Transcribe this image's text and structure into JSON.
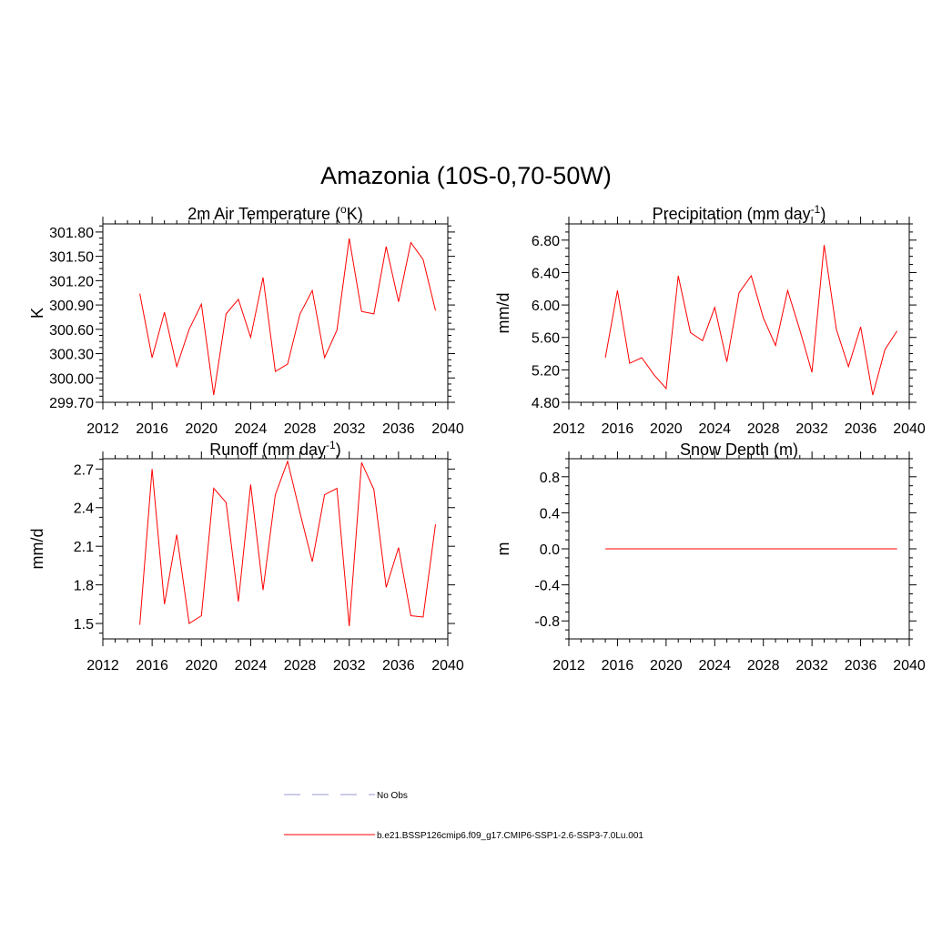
{
  "figure": {
    "title": "Amazonia (10S-0,70-50W)"
  },
  "colors": {
    "series": "#ff0000",
    "obs": "#9a9ad6"
  },
  "legend": {
    "placement": "bottom-center",
    "items": [
      {
        "label": "No Obs",
        "style": "dashed",
        "color": "#9a9ad6"
      },
      {
        "label": "b.e21.BSSP126cmip6.f09_g17.CMIP6-SSP1-2.6-SSP3-7.0Lu.001",
        "style": "solid",
        "color": "#ff0000"
      }
    ]
  },
  "chart_data": [
    {
      "type": "line",
      "title_main": "2m Air Temperature (",
      "title_sup": "o",
      "title_tail": "K)",
      "ylabel": "K",
      "xlabel": "",
      "xlim": [
        2012,
        2040
      ],
      "ylim": [
        299.7,
        301.9
      ],
      "xticks": [
        2012,
        2016,
        2020,
        2024,
        2028,
        2032,
        2036,
        2040
      ],
      "xtick_labels": [
        "2012",
        "2016",
        "2020",
        "2024",
        "2028",
        "2032",
        "2036",
        "2040"
      ],
      "yticks": [
        299.7,
        300.0,
        300.3,
        300.6,
        300.9,
        301.2,
        301.5,
        301.8
      ],
      "ytick_labels": [
        "299.70",
        "300.00",
        "300.30",
        "300.60",
        "300.90",
        "301.20",
        "301.50",
        "301.80"
      ],
      "x": [
        2015,
        2016,
        2017,
        2018,
        2019,
        2020,
        2021,
        2022,
        2023,
        2024,
        2025,
        2026,
        2027,
        2028,
        2029,
        2030,
        2031,
        2032,
        2033,
        2034,
        2035,
        2036,
        2037,
        2038,
        2039
      ],
      "y": [
        301.04,
        300.25,
        300.81,
        300.14,
        300.6,
        300.91,
        299.79,
        300.79,
        300.97,
        300.5,
        301.24,
        300.08,
        300.17,
        300.79,
        301.08,
        300.25,
        300.59,
        301.72,
        300.82,
        300.79,
        301.62,
        300.94,
        301.67,
        301.46,
        300.83
      ]
    },
    {
      "type": "line",
      "title_main": "Precipitation (mm day",
      "title_sup": "-1",
      "title_tail": ")",
      "ylabel": "mm/d",
      "xlabel": "",
      "xlim": [
        2012,
        2040
      ],
      "ylim": [
        4.8,
        7.0
      ],
      "xticks": [
        2012,
        2016,
        2020,
        2024,
        2028,
        2032,
        2036,
        2040
      ],
      "xtick_labels": [
        "2012",
        "2016",
        "2020",
        "2024",
        "2028",
        "2032",
        "2036",
        "2040"
      ],
      "yticks": [
        4.8,
        5.2,
        5.6,
        6.0,
        6.4,
        6.8
      ],
      "ytick_labels": [
        "4.80",
        "5.20",
        "5.60",
        "6.00",
        "6.40",
        "6.80"
      ],
      "x": [
        2015,
        2016,
        2017,
        2018,
        2019,
        2020,
        2021,
        2022,
        2023,
        2024,
        2025,
        2026,
        2027,
        2028,
        2029,
        2030,
        2031,
        2032,
        2033,
        2034,
        2035,
        2036,
        2037,
        2038,
        2039
      ],
      "y": [
        5.35,
        6.18,
        5.28,
        5.35,
        5.14,
        4.97,
        6.36,
        5.66,
        5.56,
        5.97,
        5.3,
        6.15,
        6.36,
        5.84,
        5.5,
        6.18,
        5.69,
        5.17,
        6.74,
        5.7,
        5.24,
        5.73,
        4.89,
        5.45,
        5.68
      ]
    },
    {
      "type": "line",
      "title_main": "Runoff (mm day",
      "title_sup": "-1",
      "title_tail": ")",
      "ylabel": "mm/d",
      "xlabel": "",
      "xlim": [
        2012,
        2040
      ],
      "ylim": [
        1.38,
        2.78
      ],
      "xticks": [
        2012,
        2016,
        2020,
        2024,
        2028,
        2032,
        2036,
        2040
      ],
      "xtick_labels": [
        "2012",
        "2016",
        "2020",
        "2024",
        "2028",
        "2032",
        "2036",
        "2040"
      ],
      "yticks": [
        1.5,
        1.8,
        2.1,
        2.4,
        2.7
      ],
      "ytick_labels": [
        "1.5",
        "1.8",
        "2.1",
        "2.4",
        "2.7"
      ],
      "x": [
        2015,
        2016,
        2017,
        2018,
        2019,
        2020,
        2021,
        2022,
        2023,
        2024,
        2025,
        2026,
        2027,
        2028,
        2029,
        2030,
        2031,
        2032,
        2033,
        2034,
        2035,
        2036,
        2037,
        2038,
        2039
      ],
      "y": [
        1.49,
        2.7,
        1.65,
        2.19,
        1.5,
        1.56,
        2.55,
        2.44,
        1.67,
        2.58,
        1.76,
        2.5,
        2.76,
        2.36,
        1.98,
        2.5,
        2.55,
        1.48,
        2.75,
        2.54,
        1.78,
        2.09,
        1.56,
        1.55,
        2.27
      ]
    },
    {
      "type": "line",
      "title_main": "Snow Depth (m)",
      "title_sup": "",
      "title_tail": "",
      "ylabel": "m",
      "xlabel": "",
      "xlim": [
        2012,
        2040
      ],
      "ylim": [
        -1.0,
        1.0
      ],
      "xticks": [
        2012,
        2016,
        2020,
        2024,
        2028,
        2032,
        2036,
        2040
      ],
      "xtick_labels": [
        "2012",
        "2016",
        "2020",
        "2024",
        "2028",
        "2032",
        "2036",
        "2040"
      ],
      "yticks": [
        -0.8,
        -0.4,
        0.0,
        0.4,
        0.8
      ],
      "ytick_labels": [
        "-0.8",
        "-0.4",
        "0.0",
        "0.4",
        "0.8"
      ],
      "x": [
        2015,
        2016,
        2017,
        2018,
        2019,
        2020,
        2021,
        2022,
        2023,
        2024,
        2025,
        2026,
        2027,
        2028,
        2029,
        2030,
        2031,
        2032,
        2033,
        2034,
        2035,
        2036,
        2037,
        2038,
        2039
      ],
      "y": [
        0,
        0,
        0,
        0,
        0,
        0,
        0,
        0,
        0,
        0,
        0,
        0,
        0,
        0,
        0,
        0,
        0,
        0,
        0,
        0,
        0,
        0,
        0,
        0,
        0
      ]
    }
  ]
}
